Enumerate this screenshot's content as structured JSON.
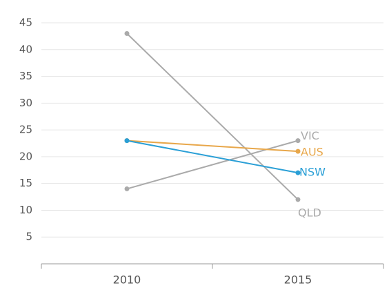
{
  "chart_data": {
    "type": "slope",
    "categories": [
      "2010",
      "2015"
    ],
    "series": [
      {
        "name": "QLD",
        "color": "#aaaaaa",
        "values": [
          43,
          12
        ]
      },
      {
        "name": "VIC",
        "color": "#aaaaaa",
        "values": [
          14,
          23
        ]
      },
      {
        "name": "AUS",
        "color": "#e8a74a",
        "values": [
          23,
          21
        ]
      },
      {
        "name": "NSW",
        "color": "#2a9fd6",
        "values": [
          23,
          17
        ]
      }
    ],
    "ylim": [
      0,
      45
    ],
    "yticks": [
      5,
      10,
      15,
      20,
      25,
      30,
      35,
      40,
      45
    ],
    "grid": true
  }
}
